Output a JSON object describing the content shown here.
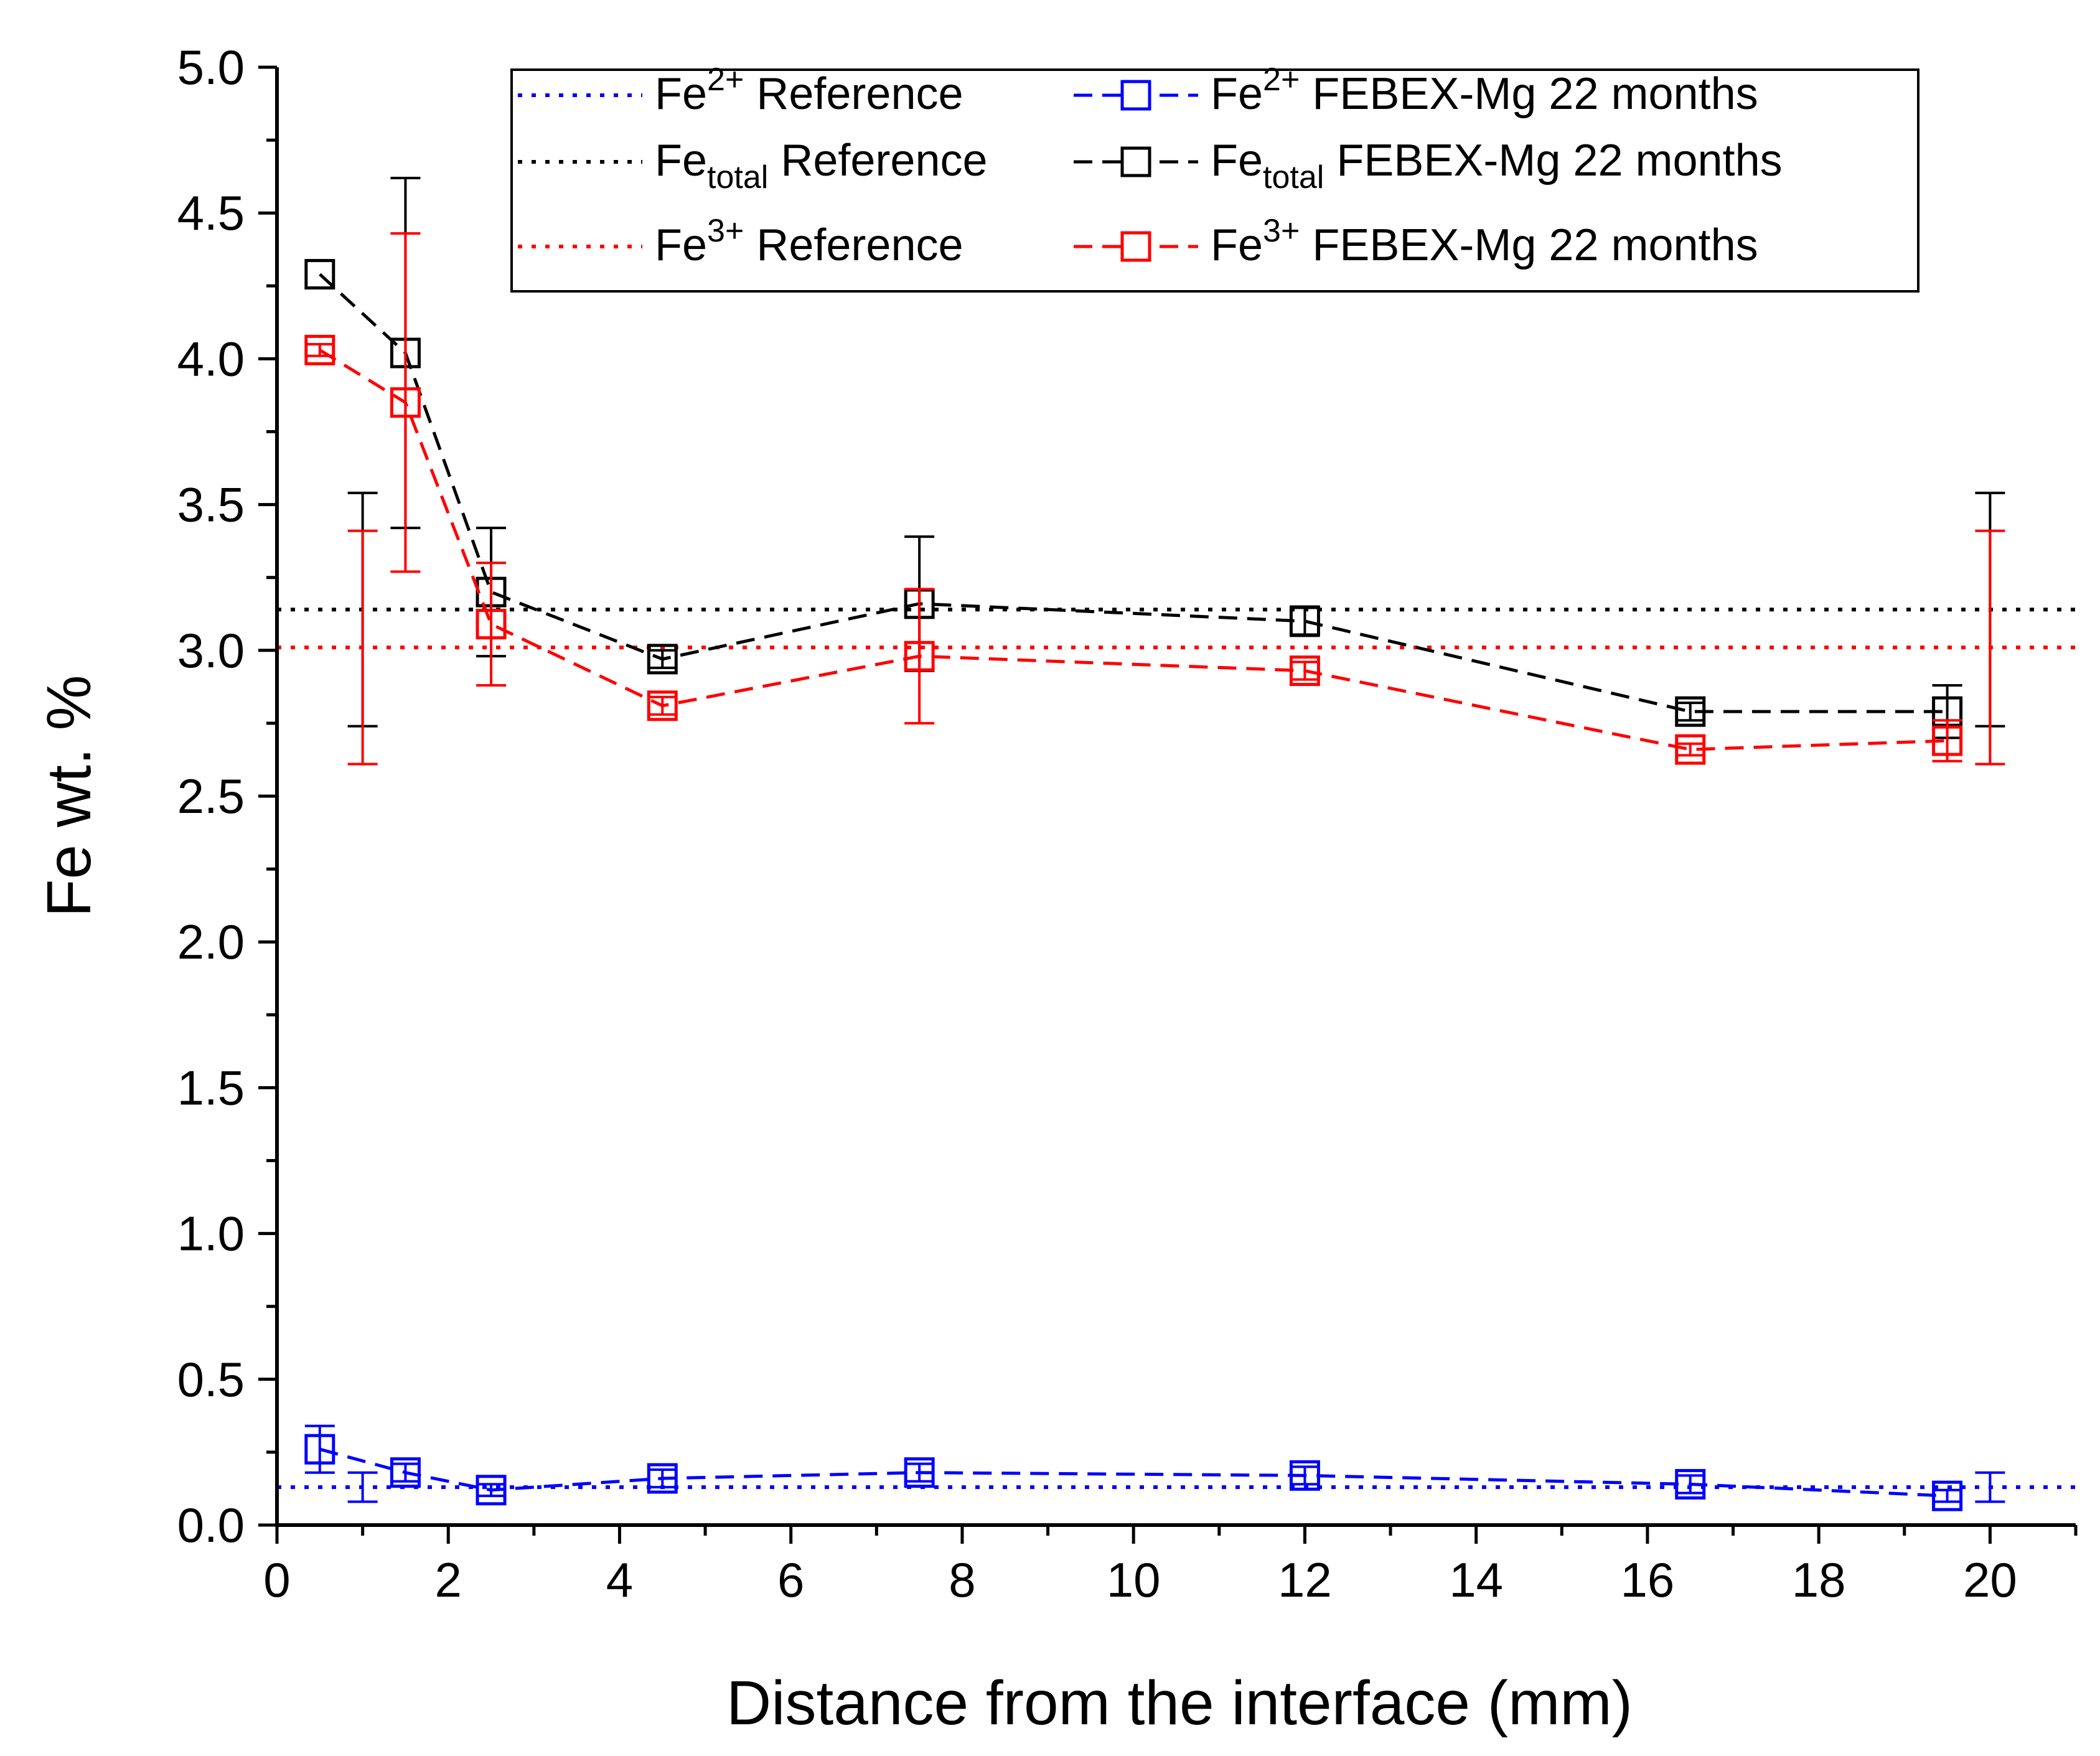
{
  "chart_data": {
    "type": "scatter",
    "xlabel": "Distance from the interface (mm)",
    "ylabel": "Fe wt. %",
    "xlim": [
      0,
      21
    ],
    "ylim": [
      0,
      5
    ],
    "xticks": [
      0,
      2,
      4,
      6,
      8,
      10,
      12,
      14,
      16,
      18,
      20
    ],
    "yticks": [
      0.0,
      0.5,
      1.0,
      1.5,
      2.0,
      2.5,
      3.0,
      3.5,
      4.0,
      4.5,
      5.0
    ],
    "xtick_labels": [
      "0",
      "2",
      "4",
      "6",
      "8",
      "10",
      "12",
      "14",
      "16",
      "18",
      "20"
    ],
    "ytick_labels": [
      "0.0",
      "0.5",
      "1.0",
      "1.5",
      "2.0",
      "2.5",
      "3.0",
      "3.5",
      "4.0",
      "4.5",
      "5.0"
    ],
    "grid": false,
    "legend_position": "top-right",
    "legend": [
      {
        "base": "Fe",
        "script": "2+",
        "script_kind": "sup",
        "rest": "Reference",
        "series": "fe2_ref"
      },
      {
        "base": "Fe",
        "script": "2+",
        "script_kind": "sup",
        "rest": "FEBEX-Mg 22 months",
        "series": "fe2_febex"
      },
      {
        "base": "Fe",
        "script": "total",
        "script_kind": "sub",
        "rest": "Reference",
        "series": "fetot_ref"
      },
      {
        "base": "Fe",
        "script": "total",
        "script_kind": "sub",
        "rest": "FEBEX-Mg 22 months",
        "series": "fetot_febex"
      },
      {
        "base": "Fe",
        "script": "3+",
        "script_kind": "sup",
        "rest": "Reference",
        "series": "fe3_ref"
      },
      {
        "base": "Fe",
        "script": "3+",
        "script_kind": "sup",
        "rest": "FEBEX-Mg 22 months",
        "series": "fe3_febex"
      }
    ],
    "references": [
      {
        "id": "fe2_ref",
        "name": "Fe2+ Reference",
        "color": "#0000ff",
        "value": 0.13,
        "error_bars": [
          {
            "x": 1,
            "low": 0.08,
            "high": 0.18
          },
          {
            "x": 20,
            "low": 0.08,
            "high": 0.18
          }
        ]
      },
      {
        "id": "fetot_ref",
        "name": "Fetotal Reference",
        "color": "#000000",
        "value": 3.14,
        "error_bars": [
          {
            "x": 1,
            "low": 2.74,
            "high": 3.54
          },
          {
            "x": 20,
            "low": 2.74,
            "high": 3.54
          }
        ]
      },
      {
        "id": "fe3_ref",
        "name": "Fe3+ Reference",
        "color": "#ff0000",
        "value": 3.01,
        "error_bars": [
          {
            "x": 1,
            "low": 2.61,
            "high": 3.41
          },
          {
            "x": 20,
            "low": 2.61,
            "high": 3.41
          }
        ]
      }
    ],
    "series": [
      {
        "id": "fe2_febex",
        "name": "Fe2+ FEBEX-Mg 22 months",
        "color": "#0000ff",
        "x": [
          0.5,
          1.5,
          2.5,
          4.5,
          7.5,
          12,
          16.5,
          19.5
        ],
        "y": [
          0.26,
          0.18,
          0.12,
          0.16,
          0.18,
          0.17,
          0.14,
          0.1
        ],
        "err": [
          0.08,
          0.03,
          0.02,
          0.03,
          0.03,
          0.03,
          0.03,
          0.02
        ]
      },
      {
        "id": "fetot_febex",
        "name": "Fetotal FEBEX-Mg 22 months",
        "color": "#000000",
        "x": [
          0.5,
          1.5,
          2.5,
          4.5,
          7.5,
          12,
          16.5,
          19.5
        ],
        "y": [
          4.29,
          4.02,
          3.2,
          2.97,
          3.16,
          3.1,
          2.79,
          2.79
        ],
        "err": [
          0.0,
          0.6,
          0.22,
          0.03,
          0.23,
          0.05,
          0.03,
          0.09
        ]
      },
      {
        "id": "fe3_febex",
        "name": "Fe3+ FEBEX-Mg 22 months",
        "color": "#ff0000",
        "x": [
          0.5,
          1.5,
          2.5,
          4.5,
          7.5,
          12,
          16.5,
          19.5
        ],
        "y": [
          4.03,
          3.85,
          3.09,
          2.81,
          2.98,
          2.93,
          2.66,
          2.69
        ],
        "err": [
          0.02,
          0.58,
          0.21,
          0.03,
          0.23,
          0.03,
          0.02,
          0.07
        ]
      }
    ]
  }
}
